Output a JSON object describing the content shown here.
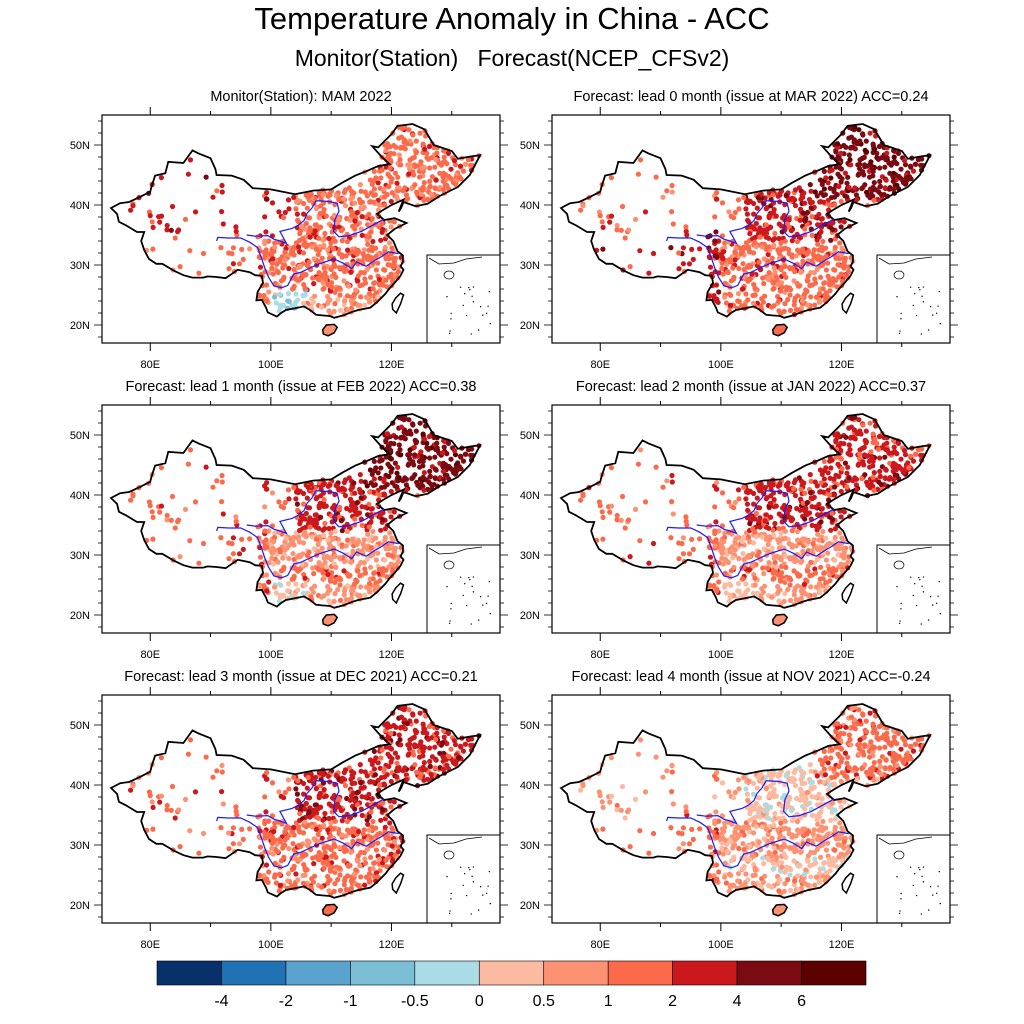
{
  "title": "Temperature Anomaly in China - ACC",
  "subtitle": "Monitor(Station)   Forecast(NCEP_CFSv2)",
  "chart_data": {
    "type": "scatter",
    "description": "Station temperature anomaly maps over China (6 panels) with a shared discrete colorbar",
    "x_axis": {
      "label": "",
      "range_deg_lon": [
        72,
        138
      ],
      "ticks": [
        "80E",
        "100E",
        "120E"
      ]
    },
    "y_axis": {
      "label": "",
      "range_deg_lat": [
        17,
        55
      ],
      "ticks": [
        "20N",
        "30N",
        "40N",
        "50N"
      ]
    },
    "colorbar": {
      "levels": [
        "-4",
        "-2",
        "-1",
        "-0.5",
        "0",
        "0.5",
        "1",
        "2",
        "4",
        "6"
      ],
      "colors": [
        "#08306b",
        "#2171b5",
        "#5ba3cf",
        "#7bbfd6",
        "#aadce6",
        "#fcbba1",
        "#fc9272",
        "#fb6a4a",
        "#cb181d",
        "#7a0b12",
        "#5c0000"
      ],
      "placement": "bottom"
    },
    "panels": [
      {
        "title": "Monitor(Station): MAM 2022",
        "acc": null,
        "regions": {
          "northwest": 8,
          "tibet": 7,
          "north_china": 7,
          "northeast": 7,
          "central": 7,
          "yangtze": 7,
          "south": 6,
          "southwest": 4
        }
      },
      {
        "title": "Forecast: lead 0 month (issue at MAR 2022) ACC=0.24",
        "acc": 0.24,
        "regions": {
          "northwest": 7,
          "tibet": 8,
          "north_china": 8,
          "northeast": 9,
          "central": 7,
          "yangtze": 7,
          "south": 7,
          "southwest": 7
        }
      },
      {
        "title": "Forecast: lead 1 month (issue at FEB 2022) ACC=0.38",
        "acc": 0.38,
        "regions": {
          "northwest": 7,
          "tibet": 7,
          "north_china": 8,
          "northeast": 9,
          "central": 7,
          "yangtze": 6,
          "south": 6,
          "southwest": 5
        }
      },
      {
        "title": "Forecast: lead 2 month (issue at JAN 2022) ACC=0.37",
        "acc": 0.37,
        "regions": {
          "northwest": 7,
          "tibet": 7,
          "north_china": 8,
          "northeast": 8,
          "central": 7,
          "yangtze": 6,
          "south": 6,
          "southwest": 5
        }
      },
      {
        "title": "Forecast: lead 3 month (issue at DEC 2021) ACC=0.21",
        "acc": 0.21,
        "regions": {
          "northwest": 7,
          "tibet": 7,
          "north_china": 8,
          "northeast": 8,
          "central": 7,
          "yangtze": 7,
          "south": 7,
          "southwest": 7
        }
      },
      {
        "title": "Forecast: lead 4 month (issue at NOV 2021) ACC=-0.24",
        "acc": -0.24,
        "regions": {
          "northwest": 6,
          "tibet": 7,
          "north_china": 5,
          "northeast": 7,
          "central": 5,
          "yangtze": 6,
          "south": 6,
          "southwest": 6
        }
      }
    ]
  }
}
